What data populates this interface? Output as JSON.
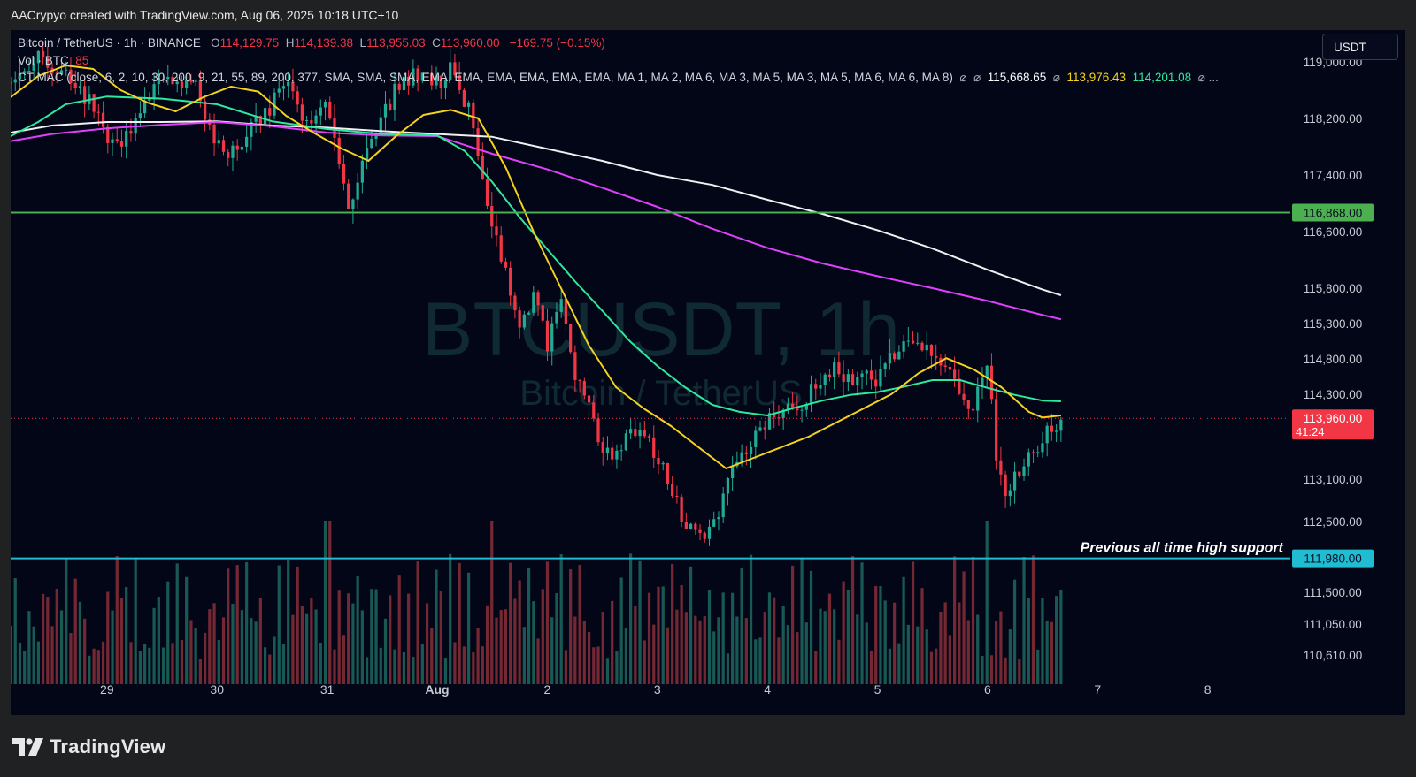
{
  "header": {
    "caption": "AACrypyo created with TradingView.com, Aug 06, 2025 10:18 UTC+10"
  },
  "legend": {
    "symbol": "Bitcoin / TetherUS · 1h · BINANCE",
    "open_label": "O",
    "open": "114,129.75",
    "high_label": "H",
    "high": "114,139.38",
    "low_label": "L",
    "low": "113,955.03",
    "close_label": "C",
    "close": "113,960.00",
    "change": "−169.75 (−0.15%)",
    "vol_label": "Vol · BTC",
    "vol_value": "85",
    "indicator": "CT MAC (close, 6, 2, 10, 30, 200, 9, 21, 55, 89, 200, 377, SMA, SMA, SMA, EMA, EMA, EMA, EMA, EMA, EMA, MA 1, MA 2, MA 6, MA 3, MA 5, MA 3, MA 5, MA 6, MA 6, MA 8)",
    "ma_value_1": "115,668.65",
    "ma_value_2": "113,976.43",
    "ma_value_3": "114,201.08",
    "more": "..."
  },
  "toolbar": {
    "currency": "USDT"
  },
  "watermark": {
    "symbol": "BTCUSDT, 1h",
    "name": "Bitcoin / TetherUS"
  },
  "footer": {
    "brand": "TradingView"
  },
  "chart_data": {
    "type": "candlestick",
    "y_axis": {
      "side": "right",
      "ticks": [
        119000,
        118200,
        117400,
        116600,
        115800,
        115300,
        114800,
        114300,
        113100,
        112500,
        111500,
        111050,
        110610
      ],
      "tick_labels": [
        "119,000.00",
        "118,200.00",
        "117,400.00",
        "116,600.00",
        "115,800.00",
        "115,300.00",
        "114,800.00",
        "114,300.00",
        "113,100.00",
        "112,500.00",
        "111,500.00",
        "111,050.00",
        "110,610.00"
      ]
    },
    "x_axis": {
      "ticks": [
        {
          "label": "29",
          "x": 0
        },
        {
          "label": "30",
          "x": 24
        },
        {
          "label": "31",
          "x": 48
        },
        {
          "label": "Aug",
          "x": 72,
          "bold": true
        },
        {
          "label": "2",
          "x": 96
        },
        {
          "label": "3",
          "x": 120
        },
        {
          "label": "4",
          "x": 144
        },
        {
          "label": "5",
          "x": 168
        },
        {
          "label": "6",
          "x": 192
        },
        {
          "label": "7",
          "x": 216
        },
        {
          "label": "8",
          "x": 240
        }
      ],
      "x_unit": "hours since Jul 29 00:00",
      "range": [
        -21,
        258
      ]
    },
    "price_range": [
      110200,
      119450
    ],
    "horizontal_lines": [
      {
        "name": "resistance",
        "price": 116868,
        "label": "116,868.00",
        "color": "#4caf50"
      },
      {
        "name": "support",
        "price": 111980,
        "label": "111,980.00",
        "color": "#1fbcd2",
        "annotation": "Previous all time high support"
      }
    ],
    "current_price": {
      "price": 113960,
      "label": "113,960.00",
      "countdown": "41:24",
      "color": "#f23645"
    },
    "colors": {
      "up": "#22ab94",
      "down": "#f23645",
      "ma_fast": "#f5d31d",
      "ma_mid": "#2ee89c",
      "ma_slow": "#e040fb",
      "ma_long": "#f0f0f0"
    },
    "moving_averages": [
      {
        "name": "MA 200 (white)",
        "color": "#f0f0f0",
        "points": [
          [
            -21,
            118000
          ],
          [
            -12,
            118100
          ],
          [
            0,
            118150
          ],
          [
            12,
            118150
          ],
          [
            24,
            118160
          ],
          [
            36,
            118100
          ],
          [
            48,
            118070
          ],
          [
            60,
            118020
          ],
          [
            72,
            117980
          ],
          [
            84,
            117940
          ],
          [
            96,
            117770
          ],
          [
            108,
            117600
          ],
          [
            120,
            117400
          ],
          [
            132,
            117260
          ],
          [
            144,
            117050
          ],
          [
            156,
            116850
          ],
          [
            168,
            116620
          ],
          [
            180,
            116360
          ],
          [
            192,
            116060
          ],
          [
            204,
            115780
          ],
          [
            208,
            115700
          ]
        ]
      },
      {
        "name": "MA 89 (magenta)",
        "color": "#e040fb",
        "points": [
          [
            -21,
            117880
          ],
          [
            -12,
            117980
          ],
          [
            0,
            118060
          ],
          [
            12,
            118110
          ],
          [
            24,
            118150
          ],
          [
            36,
            118090
          ],
          [
            48,
            118000
          ],
          [
            60,
            117960
          ],
          [
            72,
            117950
          ],
          [
            84,
            117700
          ],
          [
            96,
            117480
          ],
          [
            108,
            117220
          ],
          [
            120,
            116950
          ],
          [
            132,
            116640
          ],
          [
            144,
            116370
          ],
          [
            156,
            116150
          ],
          [
            168,
            115970
          ],
          [
            180,
            115800
          ],
          [
            192,
            115620
          ],
          [
            204,
            115420
          ],
          [
            208,
            115360
          ]
        ]
      },
      {
        "name": "MA 55 (green)",
        "color": "#2ee89c",
        "points": [
          [
            -21,
            117950
          ],
          [
            -15,
            118150
          ],
          [
            -9,
            118400
          ],
          [
            0,
            118510
          ],
          [
            12,
            118480
          ],
          [
            24,
            118400
          ],
          [
            36,
            118160
          ],
          [
            48,
            118050
          ],
          [
            60,
            117980
          ],
          [
            72,
            117960
          ],
          [
            78,
            117740
          ],
          [
            84,
            117300
          ],
          [
            90,
            116800
          ],
          [
            96,
            116350
          ],
          [
            102,
            115900
          ],
          [
            108,
            115480
          ],
          [
            114,
            115050
          ],
          [
            120,
            114700
          ],
          [
            126,
            114400
          ],
          [
            132,
            114150
          ],
          [
            138,
            114050
          ],
          [
            144,
            114000
          ],
          [
            150,
            114110
          ],
          [
            156,
            114210
          ],
          [
            162,
            114290
          ],
          [
            168,
            114330
          ],
          [
            174,
            114410
          ],
          [
            180,
            114500
          ],
          [
            186,
            114500
          ],
          [
            192,
            114390
          ],
          [
            198,
            114290
          ],
          [
            204,
            114210
          ],
          [
            208,
            114200
          ]
        ]
      },
      {
        "name": "MA 21 (yellow)",
        "color": "#f5d31d",
        "points": [
          [
            -21,
            118500
          ],
          [
            -15,
            118800
          ],
          [
            -9,
            118950
          ],
          [
            -3,
            118900
          ],
          [
            3,
            118600
          ],
          [
            9,
            118420
          ],
          [
            15,
            118300
          ],
          [
            21,
            118500
          ],
          [
            27,
            118650
          ],
          [
            33,
            118580
          ],
          [
            39,
            118240
          ],
          [
            45,
            118000
          ],
          [
            51,
            117780
          ],
          [
            57,
            117600
          ],
          [
            63,
            117950
          ],
          [
            69,
            118250
          ],
          [
            75,
            118320
          ],
          [
            81,
            118200
          ],
          [
            87,
            117500
          ],
          [
            93,
            116600
          ],
          [
            99,
            115800
          ],
          [
            105,
            115000
          ],
          [
            111,
            114400
          ],
          [
            117,
            114100
          ],
          [
            123,
            113850
          ],
          [
            129,
            113550
          ],
          [
            135,
            113250
          ],
          [
            141,
            113400
          ],
          [
            147,
            113550
          ],
          [
            153,
            113700
          ],
          [
            159,
            113900
          ],
          [
            165,
            114100
          ],
          [
            171,
            114300
          ],
          [
            177,
            114600
          ],
          [
            183,
            114810
          ],
          [
            189,
            114650
          ],
          [
            195,
            114400
          ],
          [
            201,
            114050
          ],
          [
            204,
            113970
          ],
          [
            208,
            114000
          ]
        ]
      }
    ],
    "candle_count": 228,
    "seed": 8,
    "price_anchors": [
      [
        -21,
        118700
      ],
      [
        -18,
        118950
      ],
      [
        -15,
        119100
      ],
      [
        -12,
        118800
      ],
      [
        -9,
        118900
      ],
      [
        -6,
        118600
      ],
      [
        -3,
        118400
      ],
      [
        0,
        117900
      ],
      [
        3,
        117700
      ],
      [
        6,
        118200
      ],
      [
        9,
        118500
      ],
      [
        12,
        118800
      ],
      [
        15,
        118600
      ],
      [
        18,
        118900
      ],
      [
        21,
        118300
      ],
      [
        24,
        117800
      ],
      [
        27,
        117700
      ],
      [
        30,
        117900
      ],
      [
        33,
        118200
      ],
      [
        36,
        118400
      ],
      [
        39,
        118700
      ],
      [
        42,
        118300
      ],
      [
        45,
        118100
      ],
      [
        48,
        118400
      ],
      [
        51,
        117300
      ],
      [
        53,
        116900
      ],
      [
        55,
        117500
      ],
      [
        57,
        117800
      ],
      [
        60,
        118200
      ],
      [
        63,
        118600
      ],
      [
        66,
        118800
      ],
      [
        69,
        118900
      ],
      [
        72,
        118700
      ],
      [
        75,
        118900
      ],
      [
        77,
        118600
      ],
      [
        79,
        118300
      ],
      [
        81,
        117600
      ],
      [
        83,
        117000
      ],
      [
        85,
        116400
      ],
      [
        87,
        116000
      ],
      [
        90,
        115300
      ],
      [
        93,
        115700
      ],
      [
        96,
        115000
      ],
      [
        99,
        115600
      ],
      [
        102,
        114600
      ],
      [
        105,
        114200
      ],
      [
        108,
        113500
      ],
      [
        111,
        113400
      ],
      [
        114,
        113700
      ],
      [
        117,
        113800
      ],
      [
        120,
        113400
      ],
      [
        123,
        113000
      ],
      [
        126,
        112500
      ],
      [
        129,
        112200
      ],
      [
        132,
        112400
      ],
      [
        135,
        113000
      ],
      [
        138,
        113400
      ],
      [
        141,
        113700
      ],
      [
        144,
        113900
      ],
      [
        147,
        114000
      ],
      [
        150,
        114100
      ],
      [
        153,
        114300
      ],
      [
        156,
        114400
      ],
      [
        159,
        114700
      ],
      [
        162,
        114500
      ],
      [
        165,
        114600
      ],
      [
        168,
        114500
      ],
      [
        171,
        114800
      ],
      [
        174,
        115100
      ],
      [
        177,
        115000
      ],
      [
        180,
        114800
      ],
      [
        183,
        114600
      ],
      [
        186,
        114400
      ],
      [
        189,
        114100
      ],
      [
        192,
        114800
      ],
      [
        194,
        113400
      ],
      [
        196,
        112900
      ],
      [
        199,
        113200
      ],
      [
        202,
        113500
      ],
      [
        205,
        113800
      ],
      [
        208,
        113960
      ]
    ],
    "volume_spikes": [
      [
        48,
        1.0
      ],
      [
        72,
        0.7
      ],
      [
        84,
        1.0
      ],
      [
        96,
        0.75
      ],
      [
        168,
        0.6
      ],
      [
        192,
        1.0
      ],
      [
        186,
        0.5
      ],
      [
        140,
        0.35
      ]
    ]
  }
}
